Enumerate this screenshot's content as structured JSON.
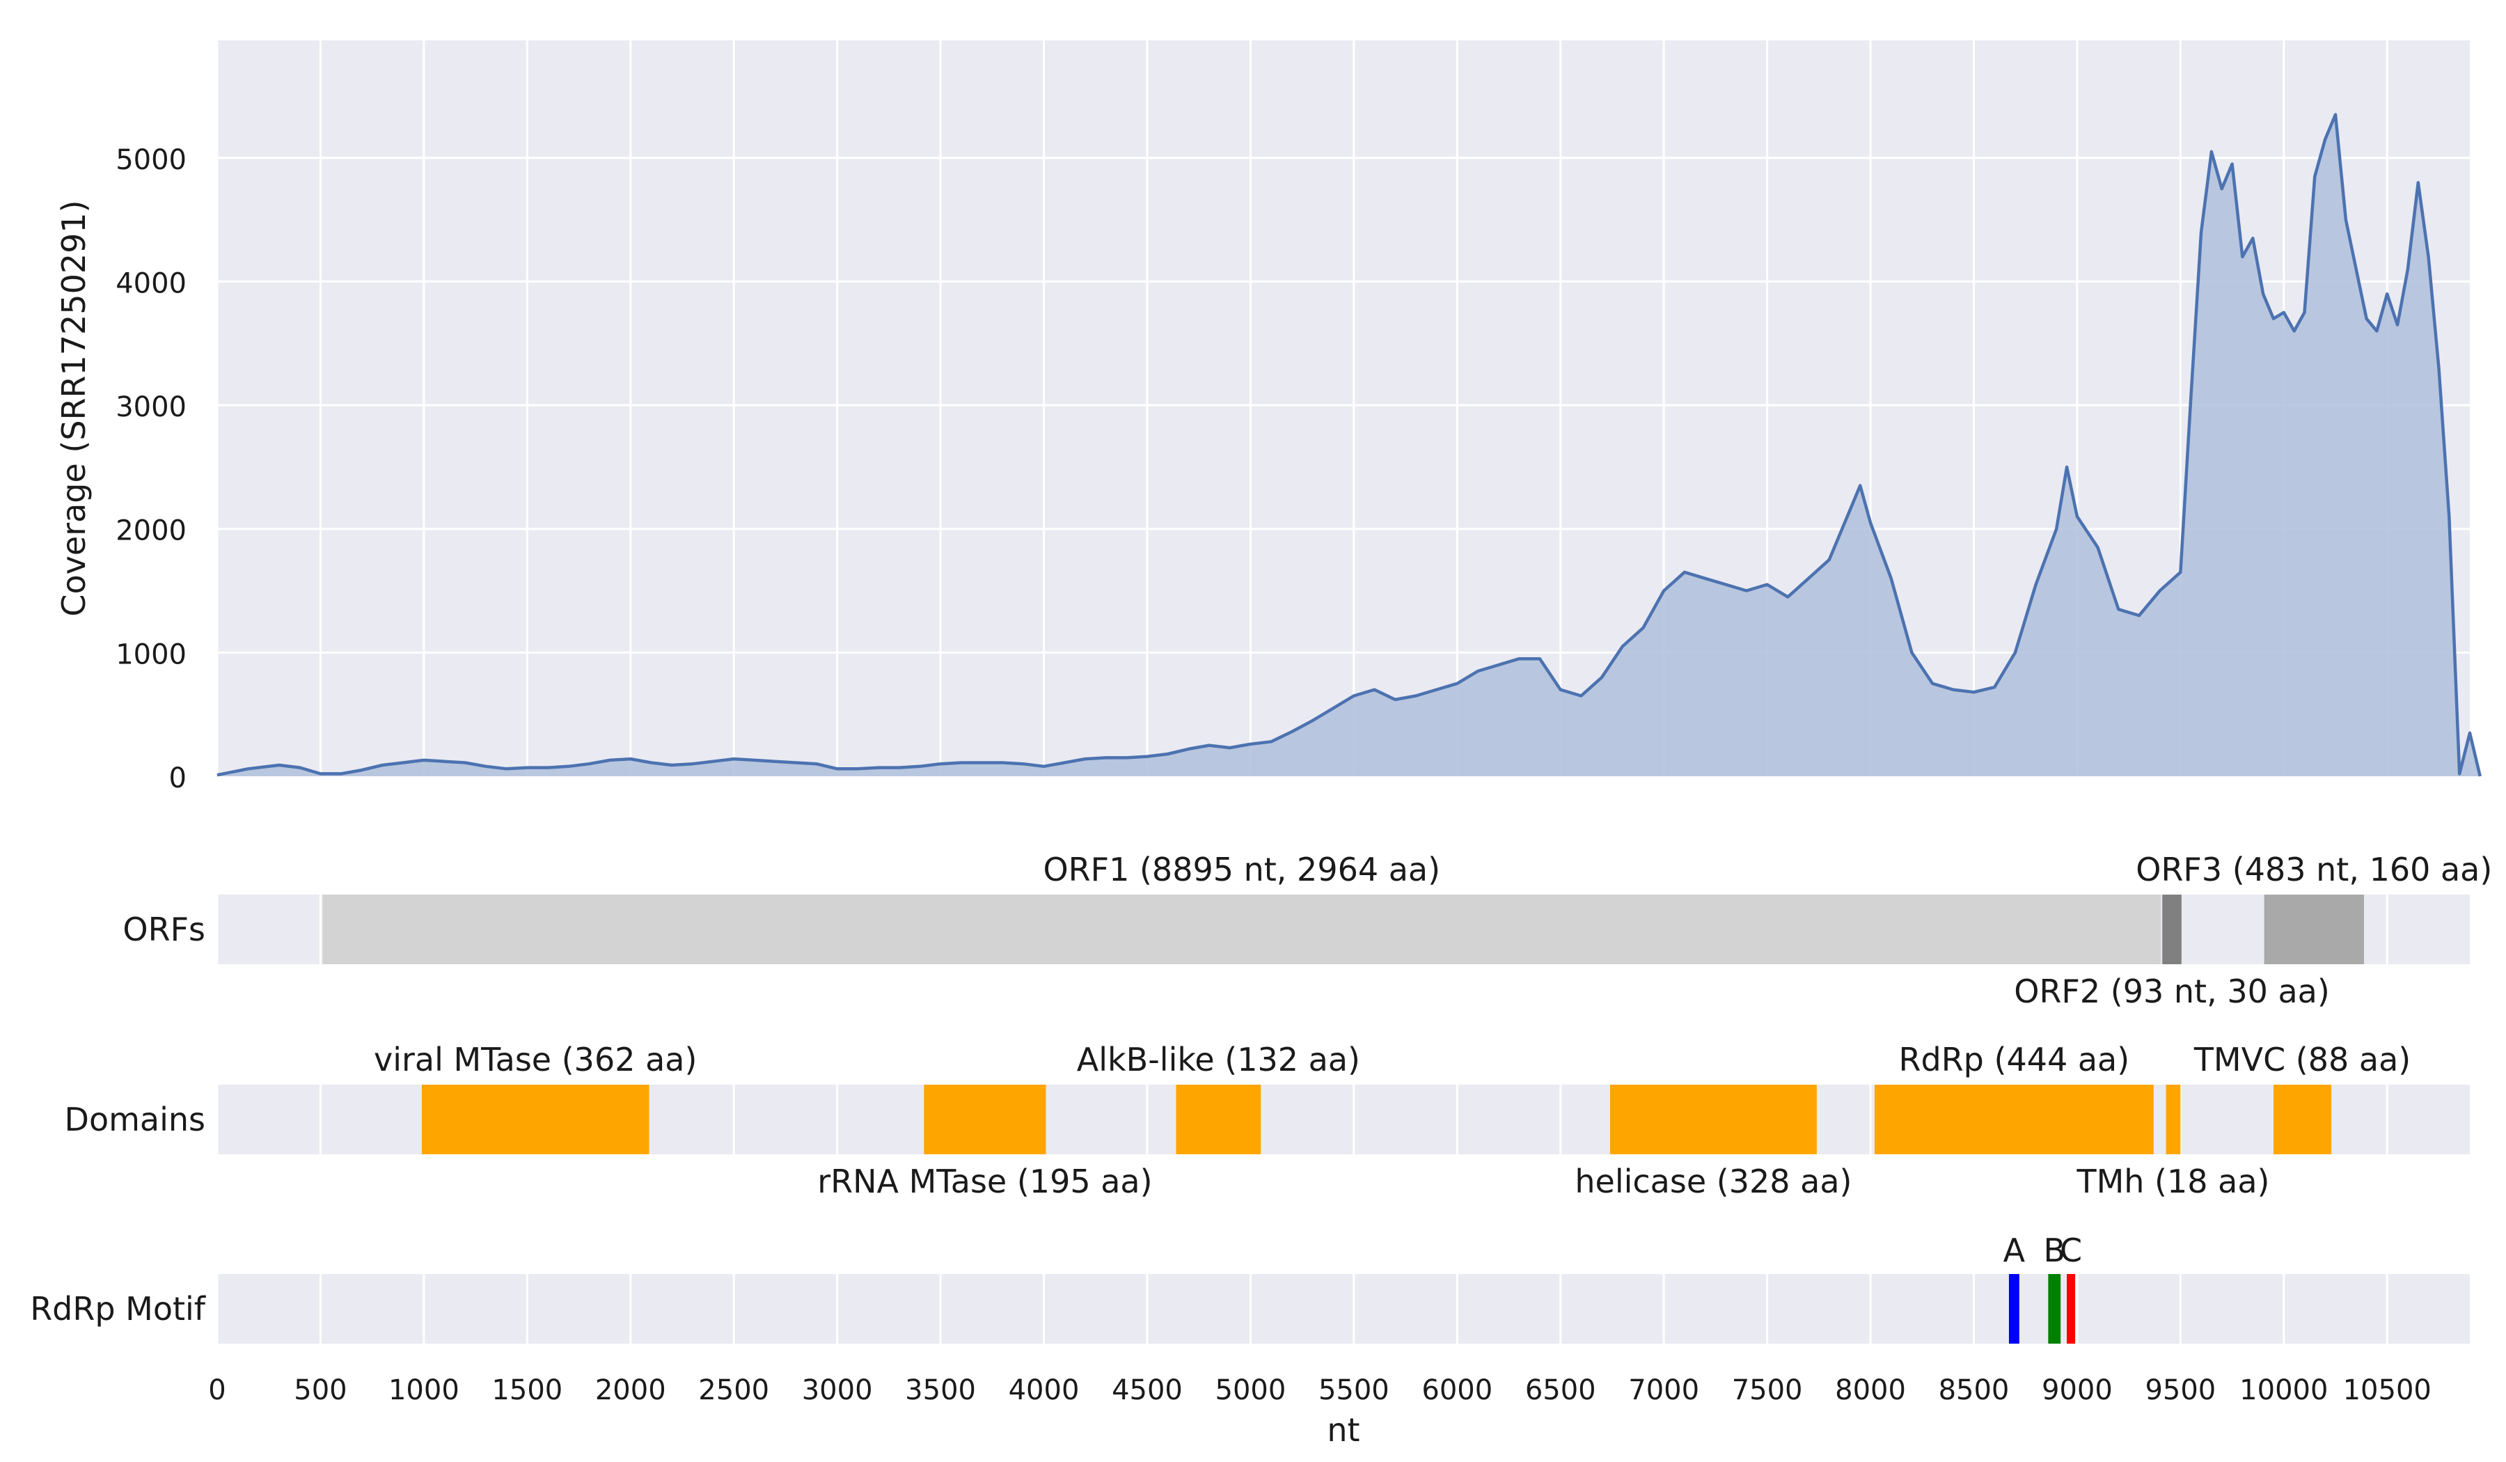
{
  "chart_data": [
    {
      "type": "area",
      "title": "",
      "ylabel": "Coverage (SRR17250291)",
      "xlabel": "",
      "xlim": [
        0,
        10900
      ],
      "ylim": [
        0,
        5950
      ],
      "yticks": [
        0,
        1000,
        2000,
        3000,
        4000,
        5000
      ],
      "grid": true,
      "series": [
        {
          "color": "#4c72b0",
          "points": [
            [
              0,
              10
            ],
            [
              150,
              60
            ],
            [
              300,
              90
            ],
            [
              400,
              70
            ],
            [
              500,
              20
            ],
            [
              600,
              20
            ],
            [
              700,
              50
            ],
            [
              800,
              90
            ],
            [
              900,
              110
            ],
            [
              1000,
              130
            ],
            [
              1100,
              120
            ],
            [
              1200,
              110
            ],
            [
              1300,
              80
            ],
            [
              1400,
              60
            ],
            [
              1500,
              70
            ],
            [
              1600,
              70
            ],
            [
              1700,
              80
            ],
            [
              1800,
              100
            ],
            [
              1900,
              130
            ],
            [
              2000,
              140
            ],
            [
              2100,
              110
            ],
            [
              2200,
              90
            ],
            [
              2300,
              100
            ],
            [
              2400,
              120
            ],
            [
              2500,
              140
            ],
            [
              2600,
              130
            ],
            [
              2700,
              120
            ],
            [
              2800,
              110
            ],
            [
              2900,
              100
            ],
            [
              3000,
              60
            ],
            [
              3100,
              60
            ],
            [
              3200,
              70
            ],
            [
              3300,
              70
            ],
            [
              3400,
              80
            ],
            [
              3500,
              100
            ],
            [
              3600,
              110
            ],
            [
              3700,
              110
            ],
            [
              3800,
              110
            ],
            [
              3900,
              100
            ],
            [
              4000,
              80
            ],
            [
              4100,
              110
            ],
            [
              4200,
              140
            ],
            [
              4300,
              150
            ],
            [
              4400,
              150
            ],
            [
              4500,
              160
            ],
            [
              4600,
              180
            ],
            [
              4700,
              220
            ],
            [
              4800,
              250
            ],
            [
              4900,
              230
            ],
            [
              5000,
              260
            ],
            [
              5100,
              280
            ],
            [
              5200,
              360
            ],
            [
              5300,
              450
            ],
            [
              5400,
              550
            ],
            [
              5500,
              650
            ],
            [
              5600,
              700
            ],
            [
              5700,
              620
            ],
            [
              5800,
              650
            ],
            [
              5900,
              700
            ],
            [
              6000,
              750
            ],
            [
              6100,
              850
            ],
            [
              6200,
              900
            ],
            [
              6300,
              950
            ],
            [
              6400,
              950
            ],
            [
              6500,
              700
            ],
            [
              6600,
              650
            ],
            [
              6700,
              800
            ],
            [
              6800,
              1050
            ],
            [
              6900,
              1200
            ],
            [
              7000,
              1500
            ],
            [
              7100,
              1650
            ],
            [
              7200,
              1600
            ],
            [
              7300,
              1550
            ],
            [
              7400,
              1500
            ],
            [
              7500,
              1550
            ],
            [
              7600,
              1450
            ],
            [
              7700,
              1600
            ],
            [
              7800,
              1750
            ],
            [
              7900,
              2150
            ],
            [
              7950,
              2350
            ],
            [
              8000,
              2050
            ],
            [
              8100,
              1600
            ],
            [
              8200,
              1000
            ],
            [
              8300,
              750
            ],
            [
              8400,
              700
            ],
            [
              8500,
              680
            ],
            [
              8600,
              720
            ],
            [
              8700,
              1000
            ],
            [
              8800,
              1550
            ],
            [
              8900,
              2000
            ],
            [
              8950,
              2500
            ],
            [
              9000,
              2100
            ],
            [
              9100,
              1850
            ],
            [
              9200,
              1350
            ],
            [
              9300,
              1300
            ],
            [
              9400,
              1500
            ],
            [
              9500,
              1650
            ],
            [
              9550,
              3050
            ],
            [
              9600,
              4400
            ],
            [
              9650,
              5050
            ],
            [
              9700,
              4750
            ],
            [
              9750,
              4950
            ],
            [
              9800,
              4200
            ],
            [
              9850,
              4350
            ],
            [
              9900,
              3900
            ],
            [
              9950,
              3700
            ],
            [
              10000,
              3750
            ],
            [
              10050,
              3600
            ],
            [
              10100,
              3750
            ],
            [
              10150,
              4850
            ],
            [
              10200,
              5150
            ],
            [
              10250,
              5350
            ],
            [
              10300,
              4500
            ],
            [
              10350,
              4100
            ],
            [
              10400,
              3700
            ],
            [
              10450,
              3600
            ],
            [
              10500,
              3900
            ],
            [
              10550,
              3650
            ],
            [
              10600,
              4100
            ],
            [
              10650,
              4800
            ],
            [
              10700,
              4200
            ],
            [
              10750,
              3300
            ],
            [
              10800,
              2100
            ],
            [
              10850,
              20
            ],
            [
              10900,
              350
            ],
            [
              10950,
              0
            ]
          ]
        }
      ]
    },
    {
      "type": "track",
      "track_label": "ORFs",
      "features": [
        {
          "start": 510,
          "end": 9405,
          "color": "#d3d3d3",
          "label": "ORF1 (8895 nt, 2964 aa)",
          "label_pos": "above"
        },
        {
          "start": 9412,
          "end": 9505,
          "color": "#808080",
          "label": "ORF2 (93 nt, 30 aa)",
          "label_pos": "below"
        },
        {
          "start": 9905,
          "end": 10388,
          "color": "#a9a9a9",
          "label": "ORF3 (483 nt, 160 aa)",
          "label_pos": "above"
        }
      ]
    },
    {
      "type": "track",
      "track_label": "Domains",
      "features": [
        {
          "start": 990,
          "end": 2090,
          "color": "#ffa500",
          "label": "viral MTase (362 aa)",
          "label_pos": "above"
        },
        {
          "start": 3420,
          "end": 4010,
          "color": "#ffa500",
          "label": "rRNA MTase (195 aa)",
          "label_pos": "below"
        },
        {
          "start": 4640,
          "end": 5050,
          "color": "#ffa500",
          "label": "AlkB-like (132 aa)",
          "label_pos": "above"
        },
        {
          "start": 6740,
          "end": 7740,
          "color": "#ffa500",
          "label": "helicase (328 aa)",
          "label_pos": "below"
        },
        {
          "start": 8020,
          "end": 9370,
          "color": "#ffa500",
          "label": "RdRp (444 aa)",
          "label_pos": "above"
        },
        {
          "start": 9430,
          "end": 9500,
          "color": "#ffa500",
          "label": "TMh (18 aa)",
          "label_pos": "below"
        },
        {
          "start": 9950,
          "end": 10230,
          "color": "#ffa500",
          "label": "TMVC (88 aa)",
          "label_pos": "above"
        }
      ]
    },
    {
      "type": "track",
      "track_label": "RdRp Motif",
      "features": [
        {
          "start": 8670,
          "end": 8720,
          "color": "#0000ff",
          "label": "A",
          "label_pos": "above"
        },
        {
          "start": 8860,
          "end": 8920,
          "color": "#008000",
          "label": "B",
          "label_pos": "above"
        },
        {
          "start": 8950,
          "end": 8990,
          "color": "#ff0000",
          "label": "C",
          "label_pos": "above"
        }
      ]
    }
  ],
  "x_axis": {
    "label": "nt",
    "range": [
      0,
      10900
    ],
    "ticks": [
      0,
      500,
      1000,
      1500,
      2000,
      2500,
      3000,
      3500,
      4000,
      4500,
      5000,
      5500,
      6000,
      6500,
      7000,
      7500,
      8000,
      8500,
      9000,
      9500,
      10000,
      10500
    ]
  },
  "colors": {
    "panel_bg": "#eaeaf2",
    "grid": "#ffffff",
    "line": "#4c72b0",
    "fill": "#b3c2dd"
  }
}
